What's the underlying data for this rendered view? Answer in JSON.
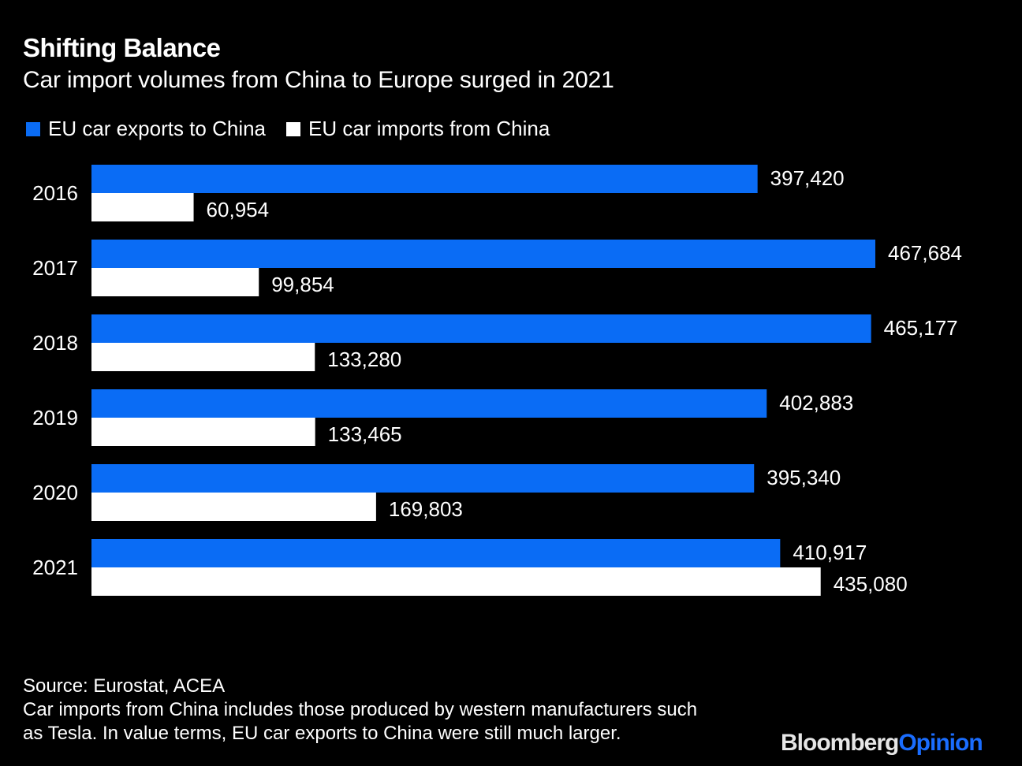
{
  "header": {
    "title": "Shifting Balance",
    "subtitle": "Car import volumes from China to Europe surged in 2021"
  },
  "legend": [
    {
      "label": "EU car exports to China",
      "color": "#0a6cf5"
    },
    {
      "label": "EU car imports from China",
      "color": "#ffffff"
    }
  ],
  "chart_data": {
    "type": "bar",
    "orientation": "horizontal",
    "title": "Shifting Balance",
    "subtitle": "Car import volumes from China to Europe surged in 2021",
    "xlabel": "",
    "ylabel": "",
    "categories": [
      "2016",
      "2017",
      "2018",
      "2019",
      "2020",
      "2021"
    ],
    "series": [
      {
        "name": "EU car exports to China",
        "color": "#0a6cf5",
        "values": [
          397420,
          467684,
          465177,
          402883,
          395340,
          410917
        ],
        "labels": [
          "397,420",
          "467,684",
          "465,177",
          "402,883",
          "395,340",
          "410,917"
        ]
      },
      {
        "name": "EU car imports from China",
        "color": "#ffffff",
        "values": [
          60954,
          99854,
          133280,
          133465,
          169803,
          435080
        ],
        "labels": [
          "60,954",
          "99,854",
          "133,280",
          "133,465",
          "169,803",
          "435,080"
        ]
      }
    ],
    "xlim": [
      0,
      467684
    ],
    "grid": false,
    "legend_position": "top-left",
    "data_labels": true
  },
  "footer": {
    "source": "Source: Eurostat, ACEA",
    "note_line1": "Car imports from China includes those produced by western manufacturers such",
    "note_line2": "as Tesla. In value terms, EU car exports to China were still much larger."
  },
  "brand": {
    "part1": "Bloomberg",
    "part2": "Opinion"
  }
}
